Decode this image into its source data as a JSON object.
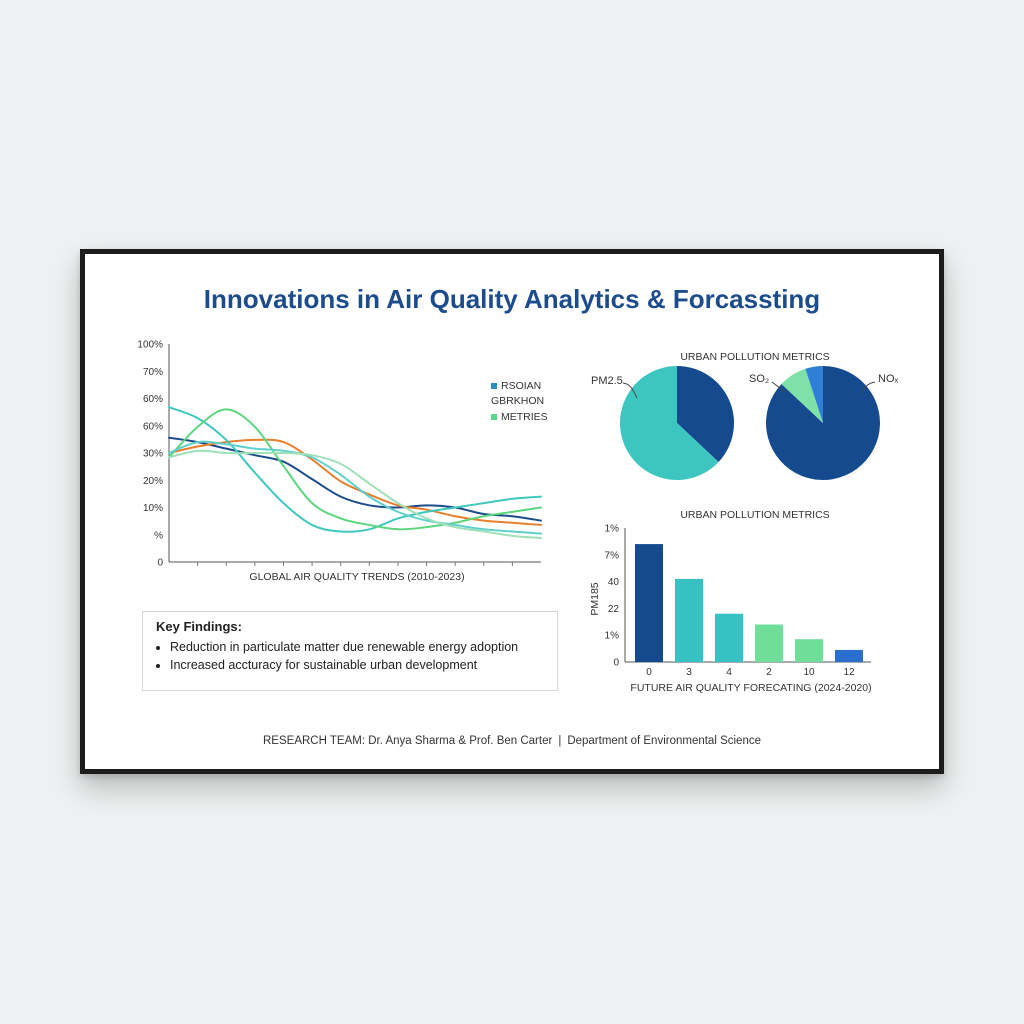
{
  "title": "Innovations in Air Quality Analytics & Forcassting",
  "line_chart": {
    "y_ticks": [
      "100%",
      "70%",
      "60%",
      "60%",
      "30%",
      "20%",
      "10%",
      "%",
      "0"
    ],
    "xlabel": "GLOBAL AIR QUALITY TRENDS (2010-2023)",
    "legend": [
      {
        "label": "RSOIAN",
        "color": "#2a8fc0"
      },
      {
        "label": "GBRKHON",
        "color": "#ffffff"
      },
      {
        "label": "METRIES",
        "color": "#5ad88a"
      }
    ]
  },
  "pie_section": {
    "title": "URBAN POLLUTION METRICS",
    "left_label": "PM2.5",
    "right_label_so2": "SO₂",
    "right_label_nox": "NOₓ"
  },
  "bar_section": {
    "title": "URBAN POLLUTION METRICS",
    "ylabel": "PM185",
    "xlabel": "FUTURE AIR QUALITY FORECATING (2024-2020)",
    "y_ticks": [
      "1%",
      "7%",
      "40",
      "22",
      "1%",
      "0"
    ]
  },
  "key_findings": {
    "title": "Key Findings:",
    "items": [
      "Reduction in particulate matter due renewable energy adoption",
      "Increased accturacy for sustainable urban development"
    ]
  },
  "footer": {
    "team": "RESEARCH TEAM: Dr. Anya Sharma & Prof. Ben Carter",
    "separator": "|",
    "department": "Department of Environmental Science"
  },
  "chart_data": [
    {
      "type": "line",
      "xlabel": "GLOBAL AIR QUALITY TRENDS (2010-2023)",
      "ylabel": "",
      "ylim": [
        0,
        100
      ],
      "grid": false,
      "x": [
        0,
        1,
        2,
        3,
        4,
        5,
        6,
        7,
        8,
        9,
        10,
        11,
        12,
        13
      ],
      "series": [
        {
          "color": "#1d4c8c",
          "values": [
            57,
            55,
            52,
            49,
            46,
            38,
            30,
            26,
            25,
            26,
            25,
            22,
            21,
            19
          ]
        },
        {
          "color": "#e77f2e",
          "values": [
            50,
            53,
            55,
            56,
            55,
            47,
            37,
            31,
            26,
            24,
            21,
            19,
            18,
            17
          ]
        },
        {
          "color": "#3ec8be",
          "values": [
            71,
            66,
            56,
            41,
            27,
            17,
            14,
            15,
            20,
            23,
            25,
            27,
            29,
            30
          ]
        },
        {
          "color": "#5bd67f",
          "values": [
            48,
            62,
            70,
            62,
            44,
            27,
            20,
            17,
            15,
            16,
            18,
            21,
            23,
            25
          ]
        },
        {
          "color": "#5fd0cb",
          "values": [
            50,
            55,
            54,
            52,
            51,
            48,
            40,
            30,
            23,
            19,
            17,
            15,
            14,
            13
          ]
        },
        {
          "color": "#9fe0b8",
          "values": [
            48,
            51,
            50,
            50,
            50,
            49,
            45,
            36,
            27,
            20,
            16,
            14,
            12,
            11
          ]
        }
      ]
    },
    {
      "type": "pie",
      "title": "URBAN POLLUTION METRICS",
      "labels": [
        "PM2.5"
      ],
      "slices": [
        {
          "value": 37,
          "color": "#154b8e"
        },
        {
          "value": 63,
          "color": "#3dc6c0"
        }
      ]
    },
    {
      "type": "pie",
      "title": "URBAN POLLUTION METRICS",
      "labels": [
        "SO₂",
        "NOₓ"
      ],
      "slices": [
        {
          "value": 87,
          "color": "#154b8e"
        },
        {
          "value": 8,
          "color": "#7fe0a8"
        },
        {
          "value": 5,
          "color": "#2f7fd6"
        }
      ]
    },
    {
      "type": "bar",
      "title": "URBAN POLLUTION METRICS",
      "xlabel": "FUTURE AIR QUALITY FORECATING (2024-2020)",
      "ylabel": "PM185",
      "ylim": [
        0,
        100
      ],
      "categories": [
        "0",
        "3",
        "4",
        "2",
        "10",
        "12"
      ],
      "values": [
        88,
        62,
        36,
        28,
        17,
        9
      ],
      "colors": [
        "#154b8e",
        "#36c2c2",
        "#36c2c2",
        "#6fde98",
        "#6fde98",
        "#2a6fd0"
      ]
    }
  ]
}
